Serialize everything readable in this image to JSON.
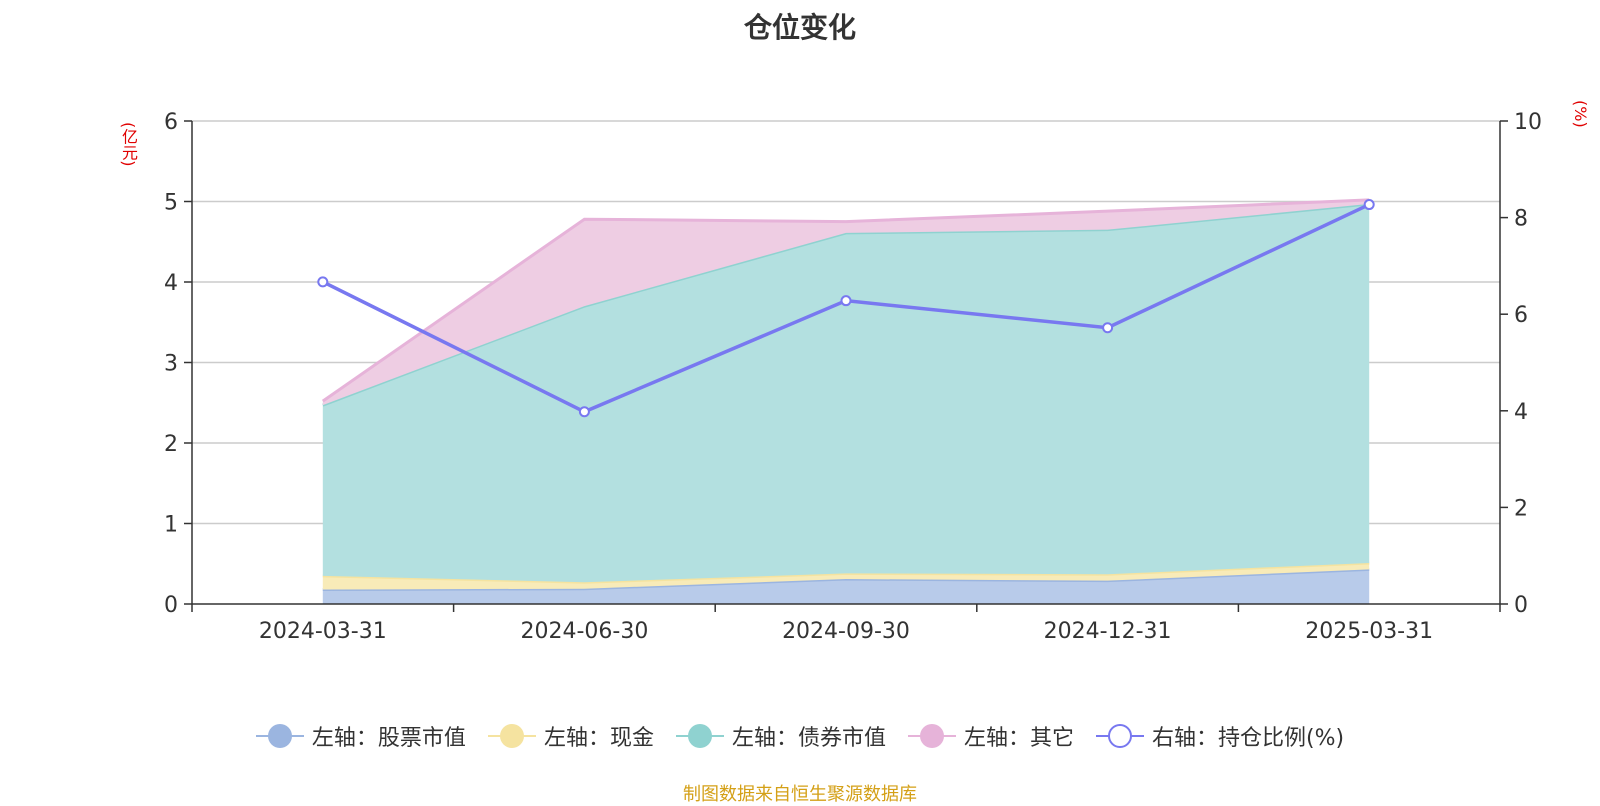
{
  "title": "仓位变化",
  "left_unit": "(亿元)",
  "right_unit": "(%)",
  "source": "制图数据来自恒生聚源数据库",
  "chart_data": {
    "type": "area",
    "x": [
      "2024-03-31",
      "2024-06-30",
      "2024-09-30",
      "2024-12-31",
      "2025-03-31"
    ],
    "left_axis": {
      "unit": "(亿元)",
      "range": [
        0,
        6
      ],
      "ticks": [
        0,
        1,
        2,
        3,
        4,
        5,
        6
      ]
    },
    "right_axis": {
      "unit": "(%)",
      "range": [
        0,
        10
      ],
      "ticks": [
        0,
        2,
        4,
        6,
        8,
        10
      ]
    },
    "stacked": true,
    "series": [
      {
        "name": "左轴：股票市值",
        "axis": "left",
        "type": "area",
        "color": "#9bb5e0",
        "fill": "#b8cbea",
        "values": [
          0.18,
          0.19,
          0.31,
          0.29,
          0.43
        ]
      },
      {
        "name": "左轴：现金",
        "axis": "left",
        "type": "area",
        "color": "#f5e3a0",
        "fill": "#f8ebb8",
        "values": [
          0.17,
          0.08,
          0.07,
          0.08,
          0.08
        ]
      },
      {
        "name": "左轴：债券市值",
        "axis": "left",
        "type": "area",
        "color": "#8fd2d0",
        "fill": "#b3e0e0",
        "values": [
          2.12,
          3.43,
          4.23,
          4.28,
          4.46
        ]
      },
      {
        "name": "左轴：其它",
        "axis": "left",
        "type": "area",
        "color": "#e6b3d9",
        "fill": "#eecde3",
        "values": [
          0.05,
          1.08,
          0.14,
          0.23,
          0.05
        ]
      },
      {
        "name": "右轴：持仓比例(%)",
        "axis": "right",
        "type": "line",
        "color": "#7878f0",
        "values": [
          6.67,
          3.98,
          6.28,
          5.72,
          8.27
        ]
      }
    ],
    "grid": true,
    "legend_position": "bottom"
  }
}
